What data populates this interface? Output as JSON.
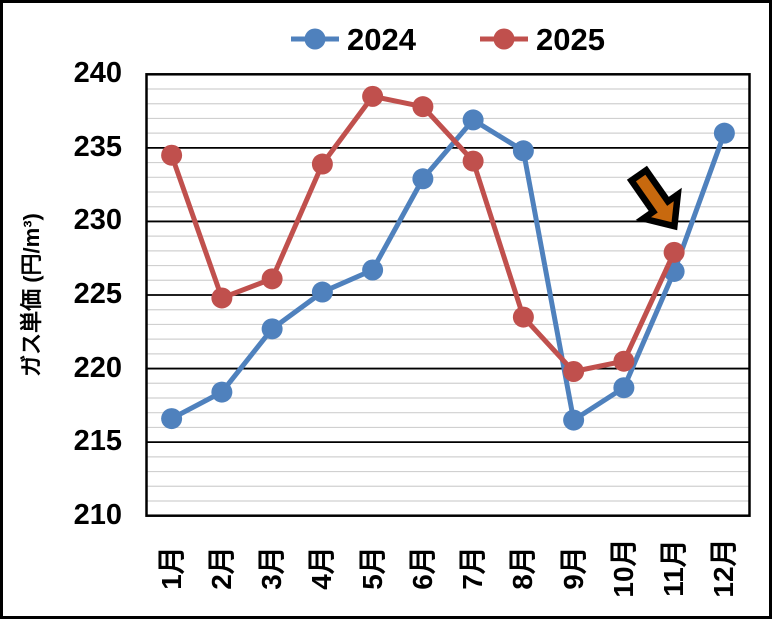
{
  "chart_data": {
    "type": "line",
    "title": "",
    "xlabel": "",
    "ylabel": "ガス単価 (円/m³)",
    "categories": [
      "1月",
      "2月",
      "3月",
      "4月",
      "5月",
      "6月",
      "7月",
      "8月",
      "9月",
      "10月",
      "11月",
      "12月"
    ],
    "series": [
      {
        "name": "2024",
        "color": "#4F81BD",
        "marker": "circle",
        "values": [
          216.6,
          218.4,
          222.7,
          225.2,
          226.7,
          232.9,
          236.9,
          234.8,
          216.5,
          218.7,
          226.6,
          236.0
        ]
      },
      {
        "name": "2025",
        "color": "#C0504D",
        "marker": "circle",
        "values": [
          234.5,
          224.8,
          226.1,
          233.9,
          238.5,
          237.8,
          234.1,
          223.5,
          219.8,
          220.5,
          227.9,
          null
        ]
      }
    ],
    "ylim": [
      210,
      240
    ],
    "y_major_step": 5,
    "y_minor_step": 1,
    "y_tick_labels": [
      "240",
      "235",
      "230",
      "225",
      "220",
      "215",
      "210"
    ],
    "grid": {
      "major": true,
      "minor": true,
      "major_color": "#000000",
      "minor_color": "#D0D0D0"
    },
    "legend_position": "top-center",
    "annotation": {
      "type": "block-arrow-icon",
      "fill": "#C8690E",
      "outline": "#000000",
      "points_to": "2025 11月 data point"
    }
  }
}
